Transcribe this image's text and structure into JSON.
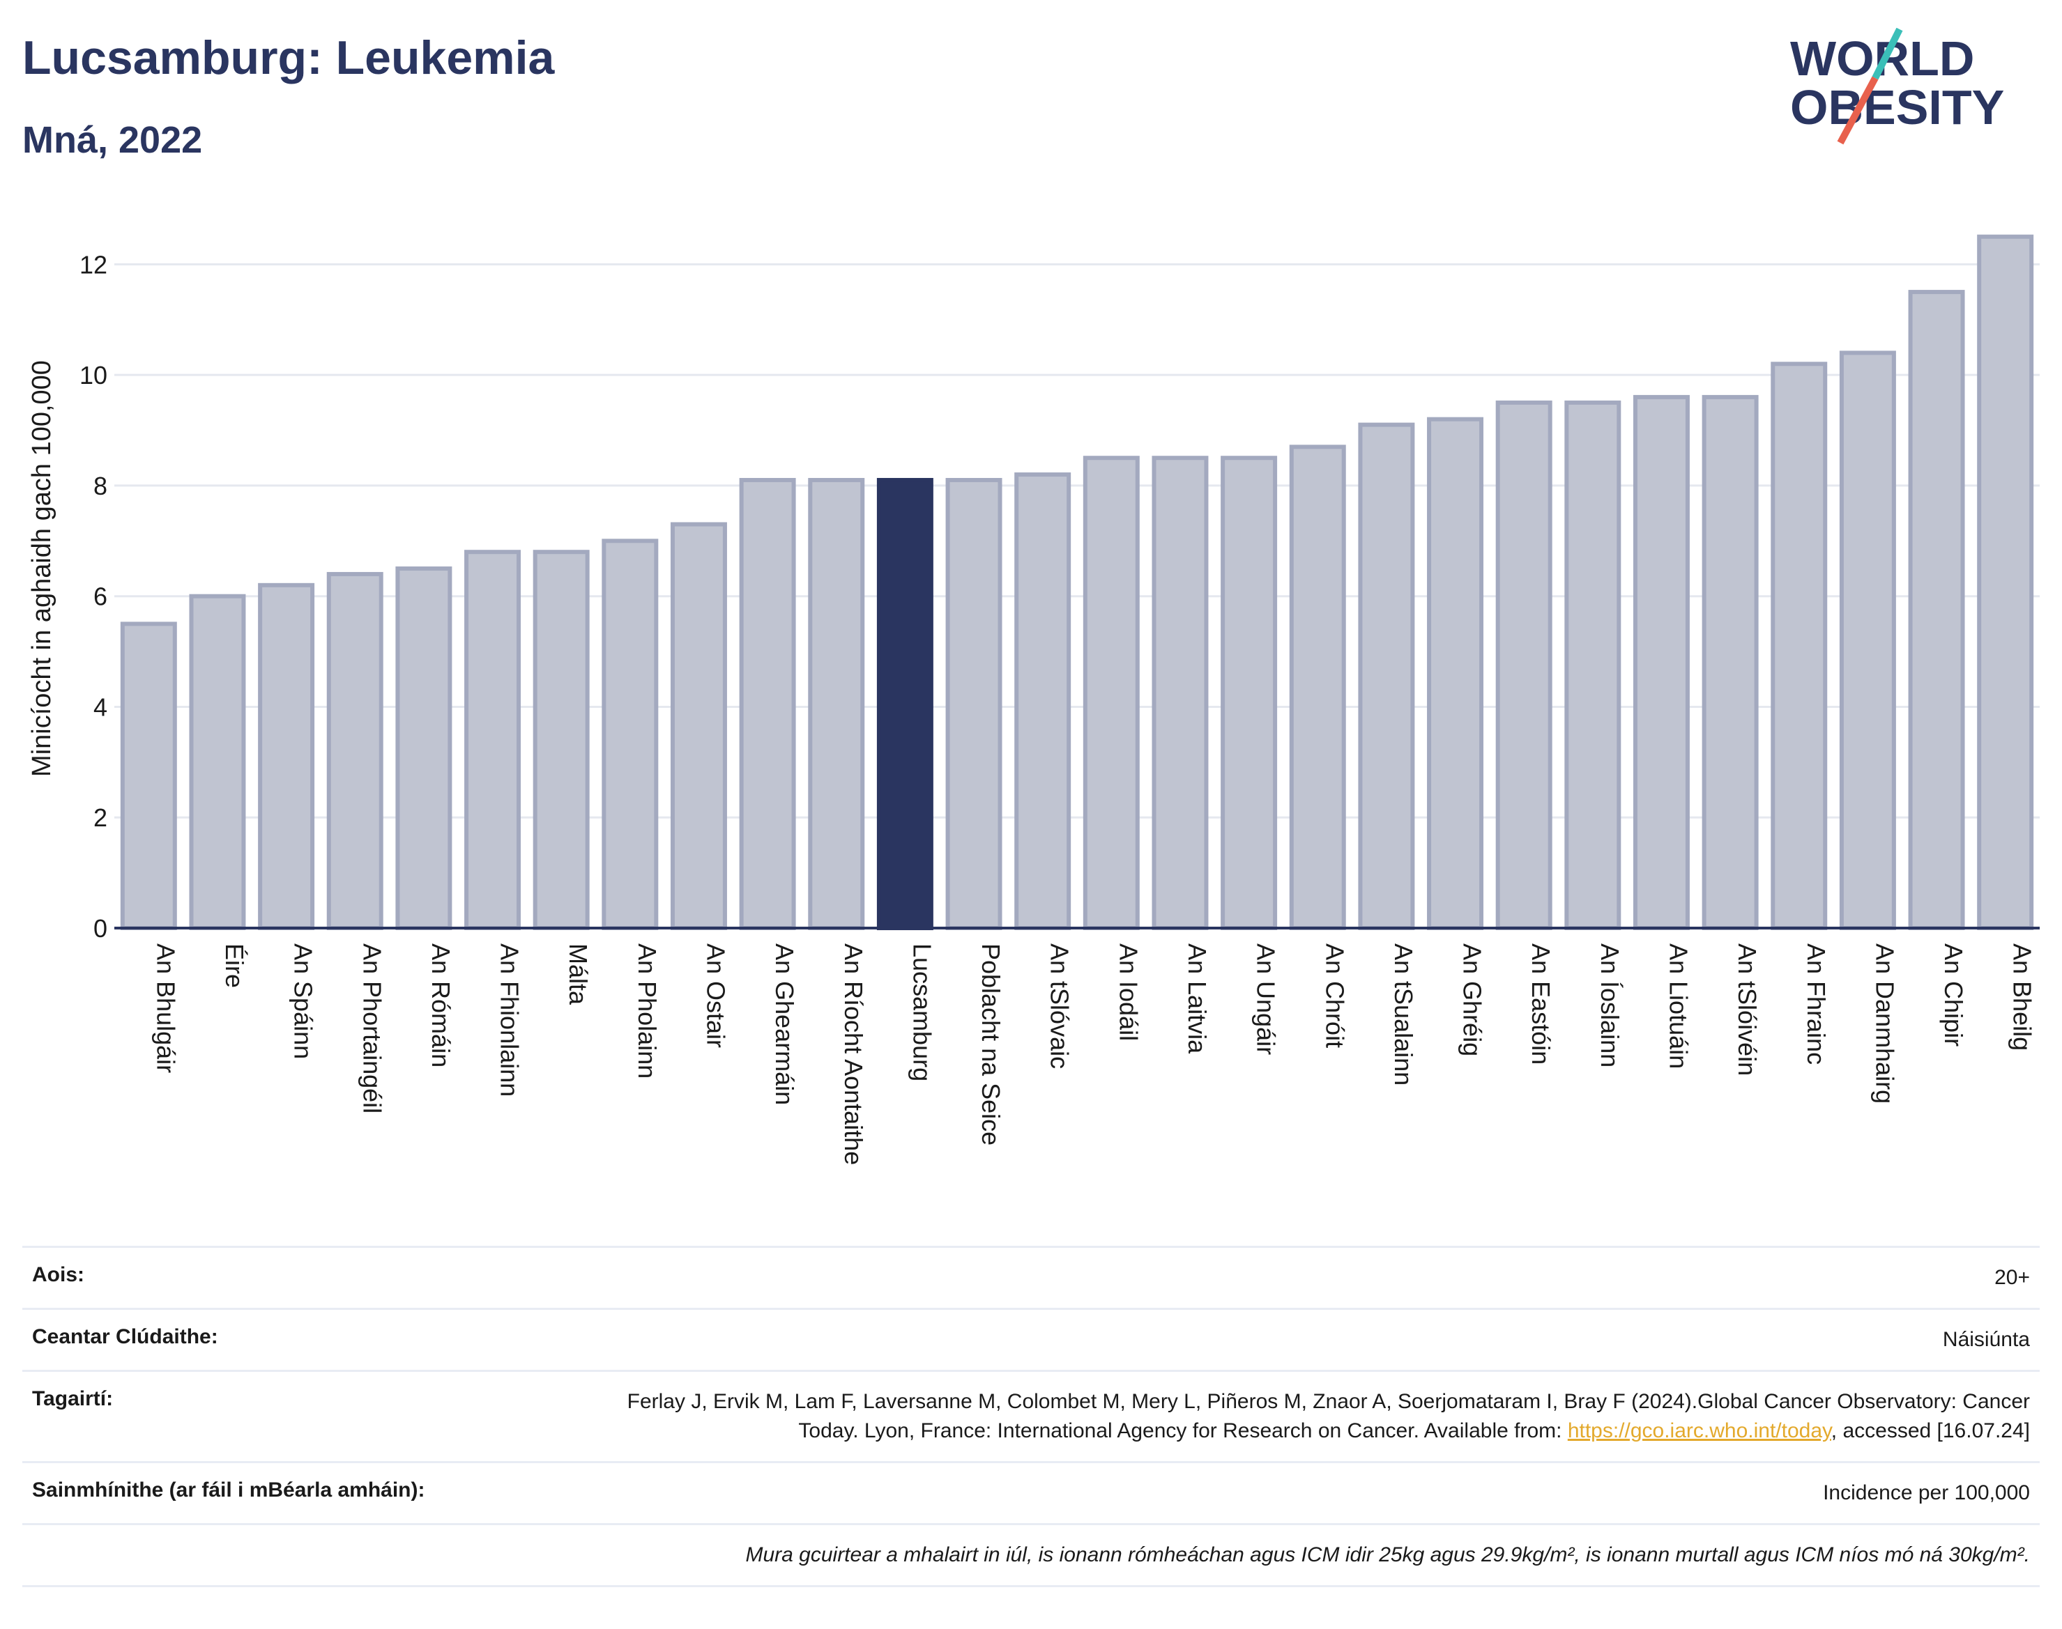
{
  "header": {
    "title": "Lucsamburg: Leukemia",
    "subtitle": "Mná, 2022"
  },
  "logo": {
    "line1": "WORLD",
    "line2": "OBESITY",
    "colors": {
      "text": "#2a3560",
      "slash_red": "#e8614d",
      "slash_teal": "#3bbfb8"
    }
  },
  "chart_data": {
    "type": "bar",
    "ylabel": "Minicíocht in aghaidh gach 100,000",
    "ylim": [
      0,
      13
    ],
    "yticks": [
      0,
      2,
      4,
      6,
      8,
      10,
      12
    ],
    "grid": true,
    "highlight": "Lucsamburg",
    "colors": {
      "bar": "#c0c4d1",
      "bar_edge": "#a3a9bf",
      "highlight": "#2a3560",
      "grid": "#e5e8ef",
      "axis": "#2a3560"
    },
    "categories": [
      "An Bhulgáir",
      "Éire",
      "An Spáinn",
      "An Phortaingéil",
      "An Rómáin",
      "An Fhionlainn",
      "Málta",
      "An Pholainn",
      "An Ostair",
      "An Ghearmáin",
      "An Ríocht Aontaithe",
      "Lucsamburg",
      "Poblacht na Seice",
      "An tSlóvaic",
      "An Iodáil",
      "An Laitvia",
      "An Ungáir",
      "An Chróit",
      "An tSualainn",
      "An Ghréig",
      "An Eastóin",
      "An Íoslainn",
      "An Liotuáin",
      "An tSlóivéin",
      "An Fhrainc",
      "An Danmhairg",
      "An Chipir",
      "An Bheilg"
    ],
    "values": [
      5.5,
      6.0,
      6.2,
      6.4,
      6.5,
      6.8,
      6.8,
      7.0,
      7.3,
      8.1,
      8.1,
      8.1,
      8.1,
      8.2,
      8.5,
      8.5,
      8.5,
      8.7,
      9.1,
      9.2,
      9.5,
      9.5,
      9.6,
      9.6,
      10.2,
      10.4,
      11.5,
      12.5
    ]
  },
  "info": {
    "age_label": "Aois:",
    "age_value": "20+",
    "area_label": "Ceantar Clúdaithe:",
    "area_value": "Náisiúnta",
    "refs_label": "Tagairtí:",
    "refs_text": "Ferlay J, Ervik M, Lam F, Laversanne M, Colombet M, Mery L, Piñeros M, Znaor A, Soerjomataram I, Bray F (2024).Global Cancer Observatory: Cancer Today. Lyon, France: International Agency for Research on Cancer. Available from: ",
    "refs_link": "https://gco.iarc.who.int/today",
    "refs_tail": ", accessed [16.07.24]",
    "defs_label": "Sainmhínithe (ar fáil i mBéarla amháin):",
    "defs_value": "Incidence per 100,000",
    "note": "Mura gcuirtear a mhalairt in iúl, is ionann rómheáchan agus ICM idir 25kg agus 29.9kg/m², is ionann murtall agus ICM níos mó ná 30kg/m²."
  }
}
